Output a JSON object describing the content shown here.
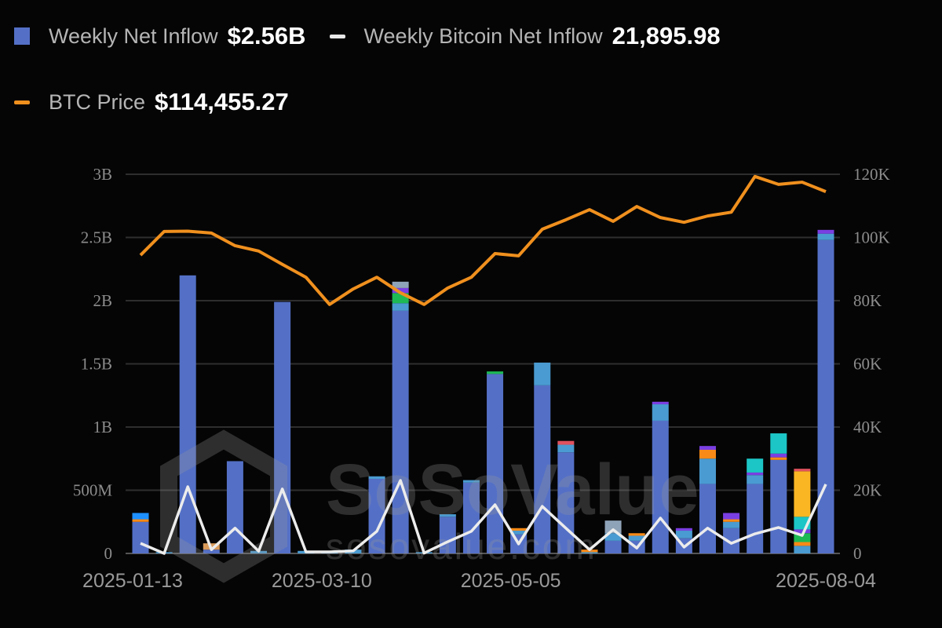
{
  "legend": [
    {
      "label": "Weekly Net Inflow",
      "value": "$2.56B",
      "color": "#5470c6",
      "marker": "square"
    },
    {
      "label": "Weekly Bitcoin Net Inflow",
      "value": "21,895.98",
      "color": "#e8e8e8",
      "marker": "dash"
    },
    {
      "label": "BTC Price",
      "value": "$114,455.27",
      "color": "#f0901e",
      "marker": "dash"
    }
  ],
  "watermark": {
    "brand": "SoSoValue",
    "url": "sosovalue.com"
  },
  "chart_data": {
    "type": "bar",
    "title": "",
    "weeks": 30,
    "x_ticks": [
      {
        "index": 0,
        "label": "2025-01-13"
      },
      {
        "index": 8,
        "label": "2025-03-10"
      },
      {
        "index": 16,
        "label": "2025-05-05"
      },
      {
        "index": 29,
        "label": "2025-08-04"
      }
    ],
    "y_left": {
      "range": [
        0,
        3
      ],
      "unit": "B USD",
      "ticks": [
        "0",
        "500M",
        "1B",
        "1.5B",
        "2B",
        "2.5B",
        "3B"
      ]
    },
    "y_right": {
      "range": [
        0,
        120
      ],
      "unit": "K",
      "ticks": [
        "0",
        "20K",
        "40K",
        "60K",
        "80K",
        "100K",
        "120K"
      ]
    },
    "grid": true,
    "legend_position": "top-left",
    "colors": {
      "blue": "#5470c6",
      "lightblue": "#4a9bd1",
      "teal": "#1cc6c6",
      "orange": "#f98a17",
      "yellow": "#fbb624",
      "purple": "#7a3fe2",
      "green": "#1db954",
      "red": "#e0525e",
      "gray": "#8fa3b8",
      "azure": "#1e90ff",
      "tan": "#d99a5a"
    },
    "weekly_net_inflow_stacks_B": [
      [
        [
          0.25,
          "blue"
        ],
        [
          0.02,
          "orange"
        ],
        [
          0.05,
          "azure"
        ]
      ],
      [
        [
          0.01,
          "lightblue"
        ]
      ],
      [
        [
          2.2,
          "blue"
        ]
      ],
      [
        [
          0.03,
          "blue"
        ],
        [
          0.05,
          "tan"
        ]
      ],
      [
        [
          0.73,
          "blue"
        ]
      ],
      [
        [
          0.02,
          "lightblue"
        ]
      ],
      [
        [
          1.99,
          "blue"
        ]
      ],
      [
        [
          0.02,
          "lightblue"
        ]
      ],
      [
        [
          0.02,
          "lightblue"
        ]
      ],
      [
        [
          0.03,
          "lightblue"
        ]
      ],
      [
        [
          0.59,
          "blue"
        ],
        [
          0.02,
          "lightblue"
        ]
      ],
      [
        [
          1.92,
          "blue"
        ],
        [
          0.06,
          "lightblue"
        ],
        [
          0.08,
          "green"
        ],
        [
          0.04,
          "purple"
        ],
        [
          0.05,
          "gray"
        ]
      ],
      [
        [
          0.01,
          "lightblue"
        ]
      ],
      [
        [
          0.29,
          "blue"
        ],
        [
          0.02,
          "lightblue"
        ]
      ],
      [
        [
          0.56,
          "blue"
        ],
        [
          0.02,
          "lightblue"
        ]
      ],
      [
        [
          1.42,
          "blue"
        ],
        [
          0.02,
          "green"
        ]
      ],
      [
        [
          0.15,
          "blue"
        ],
        [
          0.03,
          "lightblue"
        ],
        [
          0.02,
          "orange"
        ]
      ],
      [
        [
          1.33,
          "blue"
        ],
        [
          0.18,
          "lightblue"
        ]
      ],
      [
        [
          0.8,
          "blue"
        ],
        [
          0.06,
          "lightblue"
        ],
        [
          0.03,
          "red"
        ]
      ],
      [
        [
          0.01,
          "lightblue"
        ],
        [
          0.02,
          "orange"
        ]
      ],
      [
        [
          0.1,
          "blue"
        ],
        [
          0.06,
          "lightblue"
        ],
        [
          0.1,
          "gray"
        ]
      ],
      [
        [
          0.1,
          "blue"
        ],
        [
          0.04,
          "lightblue"
        ],
        [
          0.02,
          "orange"
        ]
      ],
      [
        [
          1.05,
          "blue"
        ],
        [
          0.13,
          "lightblue"
        ],
        [
          0.02,
          "purple"
        ]
      ],
      [
        [
          0.12,
          "blue"
        ],
        [
          0.06,
          "lightblue"
        ],
        [
          0.02,
          "purple"
        ]
      ],
      [
        [
          0.55,
          "blue"
        ],
        [
          0.2,
          "lightblue"
        ],
        [
          0.07,
          "orange"
        ],
        [
          0.03,
          "purple"
        ]
      ],
      [
        [
          0.2,
          "blue"
        ],
        [
          0.05,
          "lightblue"
        ],
        [
          0.02,
          "orange"
        ],
        [
          0.05,
          "purple"
        ]
      ],
      [
        [
          0.55,
          "blue"
        ],
        [
          0.07,
          "lightblue"
        ],
        [
          0.02,
          "purple"
        ],
        [
          0.11,
          "teal"
        ]
      ],
      [
        [
          0.74,
          "blue"
        ],
        [
          0.02,
          "orange"
        ],
        [
          0.03,
          "purple"
        ],
        [
          0.16,
          "teal"
        ]
      ],
      [
        [
          0.06,
          "lightblue"
        ],
        [
          0.03,
          "orange"
        ],
        [
          0.07,
          "green"
        ],
        [
          0.03,
          "purple"
        ],
        [
          0.1,
          "teal"
        ],
        [
          0.36,
          "yellow"
        ],
        [
          0.02,
          "red"
        ]
      ],
      [
        [
          2.48,
          "blue"
        ],
        [
          0.05,
          "lightblue"
        ],
        [
          0.03,
          "purple"
        ]
      ]
    ],
    "btc_price_K": [
      94.4,
      101.9,
      102,
      101.4,
      97.4,
      95.7,
      91.5,
      87.4,
      78.8,
      83.7,
      87.4,
      82.5,
      78.8,
      84,
      87.4,
      94.9,
      94.2,
      102.6,
      105.6,
      108.8,
      105.1,
      109.8,
      106.3,
      104.8,
      106.8,
      108,
      119.3,
      116.8,
      117.5,
      114.5
    ],
    "weekly_btc_net_inflow_K": [
      3.2,
      0,
      21.1,
      1.2,
      8,
      0.7,
      20.4,
      0.5,
      0.5,
      0.8,
      7,
      23.1,
      0.1,
      3.7,
      7,
      15.4,
      3,
      14.9,
      8,
      1.2,
      7.5,
      1.7,
      11.2,
      2,
      8,
      3.2,
      6.2,
      8.2,
      5.7,
      21.9
    ]
  }
}
